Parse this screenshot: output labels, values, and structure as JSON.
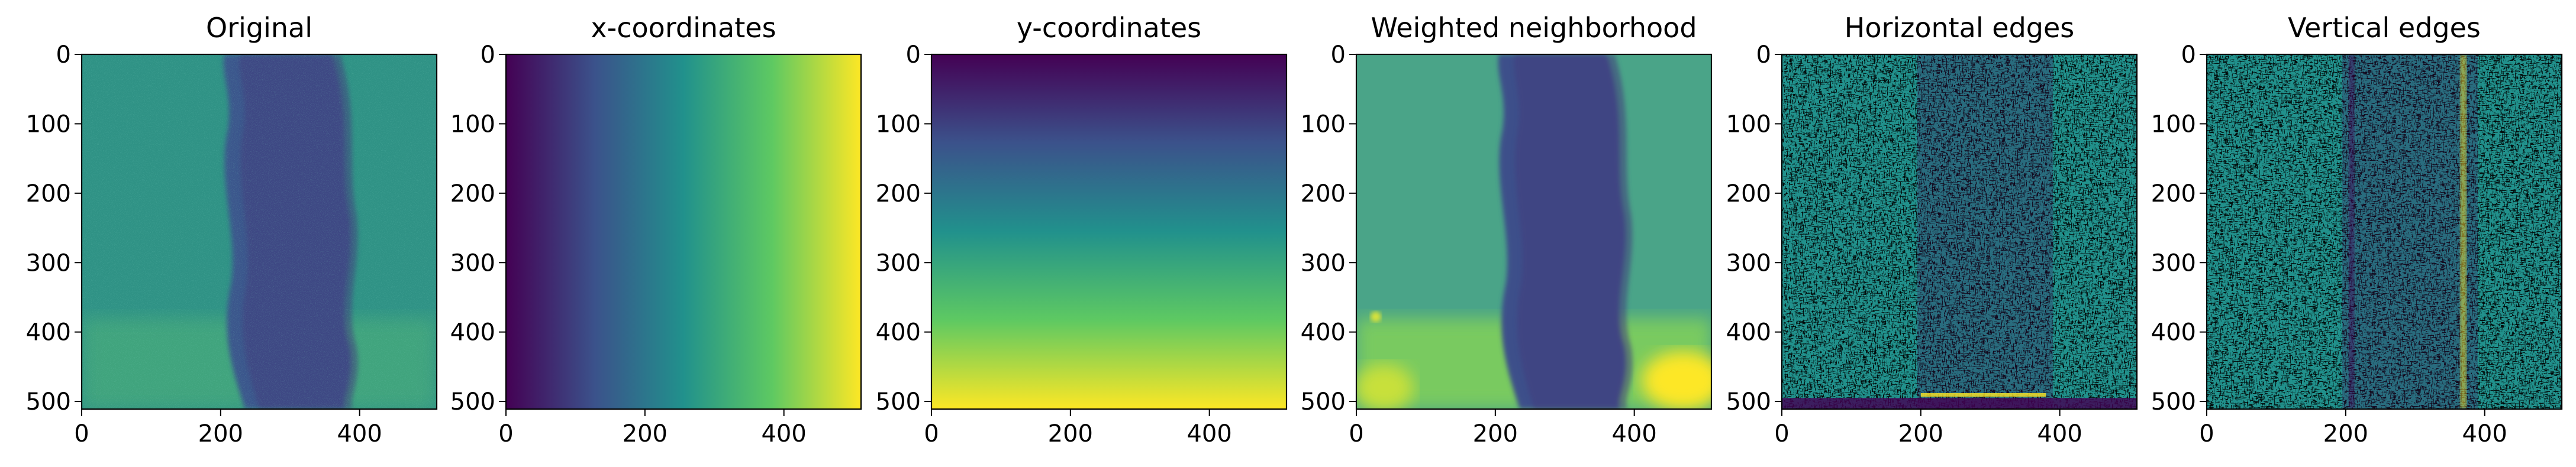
{
  "chart_data": [
    {
      "type": "heatmap",
      "title": "Original",
      "xlim": [
        0,
        511
      ],
      "ylim": [
        511,
        0
      ],
      "xticks": [
        "0",
        "200",
        "400"
      ],
      "yticks": [
        "0",
        "100",
        "200",
        "300",
        "400",
        "500"
      ],
      "colormap": "viridis",
      "content": "photo of a vertical plume"
    },
    {
      "type": "heatmap",
      "title": "x-coordinates",
      "xlim": [
        0,
        511
      ],
      "ylim": [
        511,
        0
      ],
      "xticks": [
        "0",
        "200",
        "400"
      ],
      "yticks": [
        "0",
        "100",
        "200",
        "300",
        "400",
        "500"
      ],
      "colormap": "viridis",
      "content": "gradient increasing left to right"
    },
    {
      "type": "heatmap",
      "title": "y-coordinates",
      "xlim": [
        0,
        511
      ],
      "ylim": [
        511,
        0
      ],
      "xticks": [
        "0",
        "200",
        "400"
      ],
      "yticks": [
        "0",
        "100",
        "200",
        "300",
        "400",
        "500"
      ],
      "colormap": "viridis",
      "content": "gradient increasing top to bottom"
    },
    {
      "type": "heatmap",
      "title": "Weighted neighborhood",
      "xlim": [
        0,
        511
      ],
      "ylim": [
        511,
        0
      ],
      "xticks": [
        "0",
        "200",
        "400"
      ],
      "yticks": [
        "0",
        "100",
        "200",
        "300",
        "400",
        "500"
      ],
      "colormap": "viridis",
      "content": "smoothed plume image"
    },
    {
      "type": "heatmap",
      "title": "Horizontal edges",
      "xlim": [
        0,
        511
      ],
      "ylim": [
        511,
        0
      ],
      "xticks": [
        "0",
        "200",
        "400"
      ],
      "yticks": [
        "0",
        "100",
        "200",
        "300",
        "400",
        "500"
      ],
      "colormap": "viridis",
      "content": "edge-filter response, noisy texture"
    },
    {
      "type": "heatmap",
      "title": "Vertical edges",
      "xlim": [
        0,
        511
      ],
      "ylim": [
        511,
        0
      ],
      "xticks": [
        "0",
        "200",
        "400"
      ],
      "yticks": [
        "0",
        "100",
        "200",
        "300",
        "400",
        "500"
      ],
      "colormap": "viridis",
      "content": "edge-filter response, noisy texture"
    }
  ],
  "colors": {
    "viridis_dark": "#440154",
    "viridis_blue": "#3b528b",
    "viridis_teal": "#21918c",
    "viridis_green": "#5ec962",
    "viridis_yellow": "#fde725"
  }
}
